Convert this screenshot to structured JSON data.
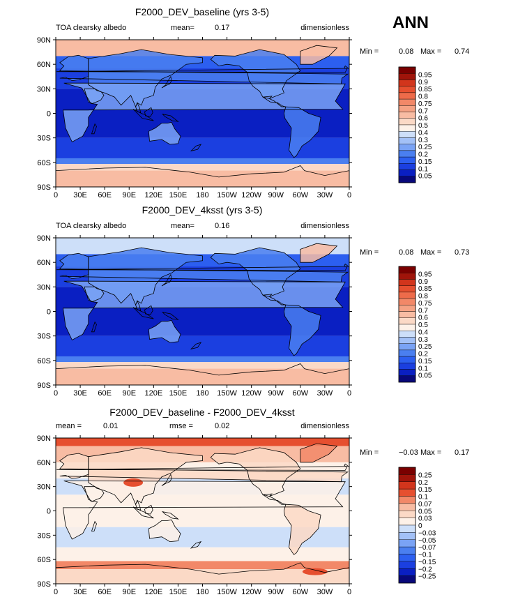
{
  "season_label": "ANN",
  "colors": {
    "main_scale": [
      "#08087a",
      "#0a1fc2",
      "#1b3fe0",
      "#2c5ff0",
      "#4a7ff0",
      "#7aa3f5",
      "#a3c1f7",
      "#cddff9",
      "#fdf1e8",
      "#fbd9c6",
      "#f8bca3",
      "#f5a284",
      "#f28868",
      "#ee6b4a",
      "#e64f2f",
      "#d2351c",
      "#a0140a",
      "#7a0000"
    ],
    "diff_scale": [
      "#08087a",
      "#0a1fc2",
      "#1b3fe0",
      "#2c5ff0",
      "#4a7ff0",
      "#7aa3f5",
      "#a3c1f7",
      "#cddff9",
      "#fdf1e8",
      "#fbd9c6",
      "#f8bca3",
      "#f28868",
      "#e64f2f",
      "#d2351c",
      "#a0140a",
      "#7a0000"
    ],
    "land": "#000000"
  },
  "chart_data": [
    {
      "type": "heatmap",
      "title": "F2000_DEV_baseline (yrs 3-5)",
      "variable": "TOA clearsky albedo",
      "mean_label": "mean=",
      "mean": "0.17",
      "units": "dimensionless",
      "min_label": "Min =",
      "min": "0.08",
      "max_label": "Max =",
      "max": "0.74",
      "levels": [
        "0.95",
        "0.9",
        "0.85",
        "0.8",
        "0.75",
        "0.7",
        "0.6",
        "0.5",
        "0.4",
        "0.3",
        "0.25",
        "0.2",
        "0.15",
        "0.1",
        "0.05"
      ],
      "xticks": [
        "0",
        "30E",
        "60E",
        "90E",
        "120E",
        "150E",
        "180",
        "150W",
        "120W",
        "90W",
        "60W",
        "30W",
        "0"
      ],
      "yticks": [
        "90N",
        "60N",
        "30N",
        "0",
        "30S",
        "60S",
        "90S"
      ],
      "xlim": [
        0,
        360
      ],
      "ylim": [
        -90,
        90
      ]
    },
    {
      "type": "heatmap",
      "title": "F2000_DEV_4ksst (yrs 3-5)",
      "variable": "TOA clearsky albedo",
      "mean_label": "mean=",
      "mean": "0.16",
      "units": "dimensionless",
      "min_label": "Min =",
      "min": "0.08",
      "max_label": "Max =",
      "max": "0.73",
      "levels": [
        "0.95",
        "0.9",
        "0.85",
        "0.8",
        "0.75",
        "0.7",
        "0.6",
        "0.5",
        "0.4",
        "0.3",
        "0.25",
        "0.2",
        "0.15",
        "0.1",
        "0.05"
      ],
      "xticks": [
        "0",
        "30E",
        "60E",
        "90E",
        "120E",
        "150E",
        "180",
        "150W",
        "120W",
        "90W",
        "60W",
        "30W",
        "0"
      ],
      "yticks": [
        "90N",
        "60N",
        "30N",
        "0",
        "30S",
        "60S",
        "90S"
      ],
      "xlim": [
        0,
        360
      ],
      "ylim": [
        -90,
        90
      ]
    },
    {
      "type": "heatmap",
      "title": "F2000_DEV_baseline - F2000_DEV_4ksst",
      "mean_label": "mean =",
      "mean": "0.01",
      "rmse_label": "rmse =",
      "rmse": "0.02",
      "units": "dimensionless",
      "min_label": "Min =",
      "min": "−0.03",
      "max_label": "Max =",
      "max": "0.17",
      "levels": [
        "0.25",
        "0.2",
        "0.15",
        "0.1",
        "0.07",
        "0.05",
        "0.03",
        "0",
        "−0.03",
        "−0.05",
        "−0.07",
        "−0.1",
        "−0.15",
        "−0.2",
        "−0.25"
      ],
      "xticks": [
        "0",
        "30E",
        "60E",
        "90E",
        "120E",
        "150E",
        "180",
        "150W",
        "120W",
        "90W",
        "60W",
        "30W",
        "0"
      ],
      "yticks": [
        "90N",
        "60N",
        "30N",
        "0",
        "30S",
        "60S",
        "90S"
      ],
      "xlim": [
        0,
        360
      ],
      "ylim": [
        -90,
        90
      ]
    }
  ]
}
